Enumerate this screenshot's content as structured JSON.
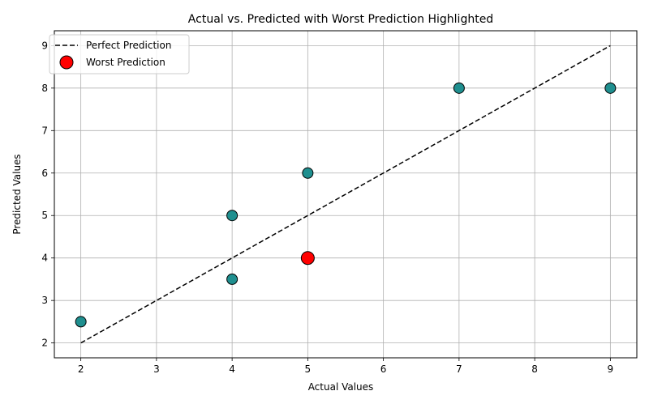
{
  "chart_data": {
    "type": "scatter",
    "title": "Actual vs. Predicted with Worst Prediction Highlighted",
    "xlabel": "Actual Values",
    "ylabel": "Predicted Values",
    "xlim": [
      1.65,
      9.35
    ],
    "ylim": [
      1.65,
      9.35
    ],
    "xticks": [
      2,
      3,
      4,
      5,
      6,
      7,
      8,
      9
    ],
    "yticks": [
      2,
      3,
      4,
      5,
      6,
      7,
      8,
      9
    ],
    "grid": true,
    "legend_position": "top-left",
    "series": [
      {
        "kind": "points",
        "color": "#1f8f8f",
        "edge_color": "#000000",
        "points": [
          {
            "x": 2,
            "y": 2.5
          },
          {
            "x": 4,
            "y": 5
          },
          {
            "x": 4,
            "y": 3.5
          },
          {
            "x": 5,
            "y": 6
          },
          {
            "x": 7,
            "y": 8
          },
          {
            "x": 9,
            "y": 8
          }
        ]
      },
      {
        "kind": "line",
        "name": "Perfect Prediction",
        "color": "#000000",
        "dash": "dashed",
        "points": [
          {
            "x": 2,
            "y": 2
          },
          {
            "x": 9,
            "y": 9
          }
        ]
      },
      {
        "kind": "highlight",
        "name": "Worst Prediction",
        "color": "#ff0000",
        "edge_color": "#000000",
        "points": [
          {
            "x": 5,
            "y": 4
          }
        ]
      }
    ]
  }
}
